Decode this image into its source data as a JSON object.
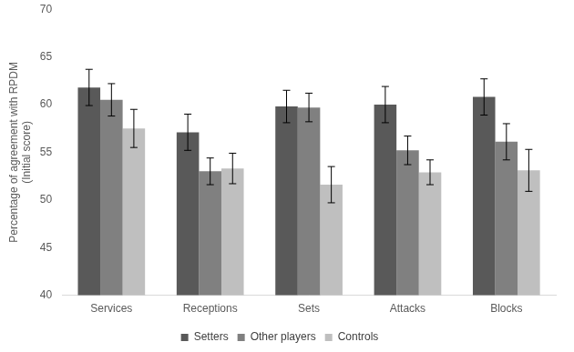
{
  "chart_data": {
    "type": "bar",
    "y_label": [
      "Percentage of agreement with RPDM",
      "(Initial score)"
    ],
    "categories": [
      "Services",
      "Receptions",
      "Sets",
      "Attacks",
      "Blocks"
    ],
    "series": [
      {
        "name": "Setters",
        "color": "#595959",
        "values": [
          61.8,
          57.1,
          59.8,
          60.0,
          60.8
        ],
        "errors": [
          1.9,
          1.9,
          1.7,
          1.9,
          1.9
        ]
      },
      {
        "name": "Other players",
        "color": "#808080",
        "values": [
          60.5,
          53.0,
          59.7,
          55.2,
          56.1
        ],
        "errors": [
          1.7,
          1.4,
          1.5,
          1.5,
          1.9
        ]
      },
      {
        "name": "Controls",
        "color": "#bfbfbf",
        "values": [
          57.5,
          53.3,
          51.6,
          52.9,
          53.1
        ],
        "errors": [
          2.0,
          1.6,
          1.9,
          1.3,
          2.2
        ]
      }
    ],
    "ylim": [
      40,
      70
    ],
    "yticks": [
      40,
      45,
      50,
      55,
      60,
      65,
      70
    ],
    "grid": false,
    "legend": "bottom"
  }
}
